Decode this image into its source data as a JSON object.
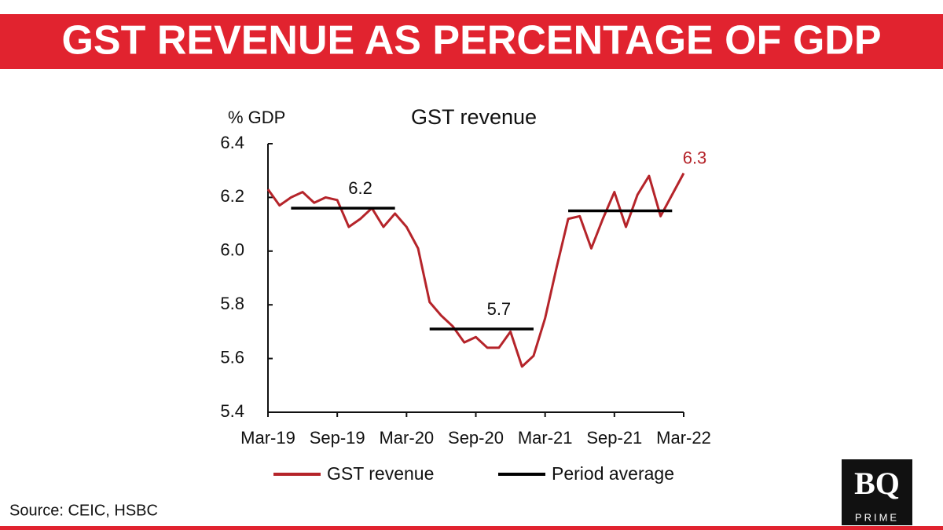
{
  "chart_data": {
    "type": "line",
    "banner_title": "GST REVENUE AS PERCENTAGE OF GDP",
    "title": "GST revenue",
    "y_label": "% GDP",
    "source": "Source: CEIC, HSBC",
    "logo": [
      "BQ",
      "PRIME"
    ],
    "categories": [
      "Mar-19",
      null,
      null,
      null,
      null,
      null,
      "Sep-19",
      null,
      null,
      null,
      null,
      null,
      "Mar-20",
      null,
      null,
      null,
      null,
      null,
      "Sep-20",
      null,
      null,
      null,
      null,
      null,
      "Mar-21",
      null,
      null,
      null,
      null,
      null,
      "Sep-21",
      null,
      null,
      null,
      null,
      null,
      "Mar-22"
    ],
    "series": [
      {
        "name": "GST revenue",
        "color": "#b5242a",
        "values": [
          6.23,
          6.17,
          6.2,
          6.22,
          6.18,
          6.2,
          6.19,
          6.09,
          6.12,
          6.16,
          6.09,
          6.14,
          6.09,
          6.01,
          5.81,
          5.76,
          5.72,
          5.66,
          5.68,
          5.64,
          5.64,
          5.7,
          5.57,
          5.61,
          5.75,
          5.94,
          6.12,
          6.13,
          6.01,
          6.12,
          6.22,
          6.09,
          6.21,
          6.28,
          6.13,
          6.21,
          6.29
        ],
        "value_labels": [
          null,
          null,
          null,
          null,
          null,
          null,
          null,
          null,
          null,
          null,
          null,
          null,
          null,
          null,
          null,
          null,
          null,
          null,
          null,
          null,
          null,
          null,
          null,
          null,
          null,
          null,
          null,
          null,
          null,
          null,
          null,
          null,
          null,
          null,
          null,
          null,
          "6.3"
        ]
      },
      {
        "name": "Period average",
        "color": "#000000",
        "values": [
          null,
          null,
          6.16,
          6.16,
          6.16,
          6.16,
          6.16,
          6.16,
          6.16,
          6.16,
          6.16,
          6.16,
          null,
          null,
          5.71,
          5.71,
          5.71,
          5.71,
          5.71,
          5.71,
          5.71,
          5.71,
          5.71,
          5.71,
          null,
          null,
          6.15,
          6.15,
          6.15,
          6.15,
          6.15,
          6.15,
          6.15,
          6.15,
          6.15,
          6.15,
          null
        ],
        "value_labels": [
          null,
          null,
          null,
          null,
          null,
          null,
          null,
          null,
          "6.2",
          null,
          null,
          null,
          null,
          null,
          null,
          null,
          null,
          null,
          null,
          null,
          "5.7",
          null,
          null,
          null,
          null,
          null,
          null,
          null,
          null,
          null,
          null,
          null,
          null,
          null,
          null,
          null,
          null
        ]
      }
    ],
    "ylim": [
      5.4,
      6.4
    ],
    "yticks": [
      5.4,
      5.6,
      5.8,
      {
        "value": 6,
        "label": "6.0"
      },
      6.2,
      6.4
    ],
    "grid": false
  }
}
